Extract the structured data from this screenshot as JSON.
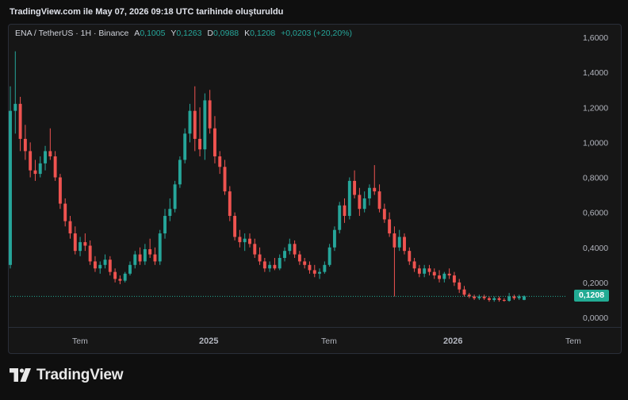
{
  "caption": "TradingView.com ile May 07, 2026 09:18 UTC tarihinde oluşturuldu",
  "legend": {
    "symbol": "ENA / TetherUS · 1H · Binance",
    "open_label": "A",
    "open": "0,1005",
    "high_label": "Y",
    "high": "0,1263",
    "low_label": "D",
    "low": "0,0988",
    "close_label": "K",
    "close": "0,1208",
    "change": "+0,0203 (+20,20%)"
  },
  "last_price": "0,1208",
  "brand": {
    "name": "TradingView",
    "logo_icon": "tradingview-logo-icon"
  },
  "colors": {
    "up": "#26a69a",
    "down": "#ef5350",
    "badge": "#22ab94",
    "background": "#161616"
  },
  "chart_data": {
    "type": "candlestick",
    "y_ticks": [
      "1,6000",
      "1,4000",
      "1,2000",
      "1,0000",
      "0,8000",
      "0,6000",
      "0,4000",
      "0,2000",
      "0,0000"
    ],
    "y_tick_values": [
      1.6,
      1.4,
      1.2,
      1.0,
      0.8,
      0.6,
      0.4,
      0.2,
      0.0
    ],
    "ylim": [
      -0.05,
      1.68
    ],
    "x_ticks": [
      "Tem",
      "2025",
      "Tem",
      "2026",
      "Tem"
    ],
    "last_price": 0.1208,
    "grid": false,
    "candles": [
      [
        0.3,
        1.32,
        0.28,
        1.18
      ],
      [
        1.18,
        1.52,
        1.05,
        1.22
      ],
      [
        1.22,
        1.26,
        0.95,
        1.02
      ],
      [
        1.02,
        1.1,
        0.9,
        0.95
      ],
      [
        0.95,
        1.0,
        0.8,
        0.84
      ],
      [
        0.84,
        0.9,
        0.78,
        0.82
      ],
      [
        0.82,
        0.92,
        0.8,
        0.88
      ],
      [
        0.88,
        0.98,
        0.84,
        0.95
      ],
      [
        0.95,
        1.08,
        0.9,
        0.92
      ],
      [
        0.92,
        0.95,
        0.78,
        0.8
      ],
      [
        0.8,
        0.82,
        0.62,
        0.65
      ],
      [
        0.65,
        0.68,
        0.52,
        0.55
      ],
      [
        0.55,
        0.58,
        0.45,
        0.48
      ],
      [
        0.48,
        0.52,
        0.36,
        0.38
      ],
      [
        0.38,
        0.46,
        0.35,
        0.43
      ],
      [
        0.43,
        0.48,
        0.38,
        0.41
      ],
      [
        0.41,
        0.44,
        0.3,
        0.32
      ],
      [
        0.32,
        0.35,
        0.26,
        0.28
      ],
      [
        0.28,
        0.32,
        0.25,
        0.3
      ],
      [
        0.3,
        0.36,
        0.28,
        0.33
      ],
      [
        0.33,
        0.35,
        0.24,
        0.26
      ],
      [
        0.26,
        0.28,
        0.2,
        0.22
      ],
      [
        0.22,
        0.24,
        0.19,
        0.21
      ],
      [
        0.21,
        0.26,
        0.2,
        0.25
      ],
      [
        0.25,
        0.32,
        0.24,
        0.3
      ],
      [
        0.3,
        0.38,
        0.28,
        0.36
      ],
      [
        0.36,
        0.4,
        0.3,
        0.32
      ],
      [
        0.32,
        0.42,
        0.3,
        0.39
      ],
      [
        0.39,
        0.45,
        0.34,
        0.36
      ],
      [
        0.36,
        0.4,
        0.3,
        0.32
      ],
      [
        0.32,
        0.5,
        0.3,
        0.48
      ],
      [
        0.48,
        0.62,
        0.45,
        0.58
      ],
      [
        0.58,
        0.68,
        0.55,
        0.62
      ],
      [
        0.62,
        0.78,
        0.6,
        0.76
      ],
      [
        0.76,
        0.92,
        0.74,
        0.9
      ],
      [
        0.9,
        1.08,
        0.88,
        1.05
      ],
      [
        1.05,
        1.22,
        1.0,
        1.18
      ],
      [
        1.18,
        1.32,
        0.95,
        1.02
      ],
      [
        1.02,
        1.2,
        0.92,
        0.96
      ],
      [
        0.96,
        1.28,
        0.9,
        1.24
      ],
      [
        1.24,
        1.3,
        1.05,
        1.08
      ],
      [
        1.08,
        1.15,
        0.88,
        0.92
      ],
      [
        0.92,
        0.95,
        0.82,
        0.86
      ],
      [
        0.86,
        0.9,
        0.7,
        0.72
      ],
      [
        0.72,
        0.75,
        0.55,
        0.58
      ],
      [
        0.58,
        0.6,
        0.44,
        0.46
      ],
      [
        0.46,
        0.5,
        0.4,
        0.43
      ],
      [
        0.43,
        0.48,
        0.38,
        0.45
      ],
      [
        0.45,
        0.48,
        0.4,
        0.42
      ],
      [
        0.42,
        0.45,
        0.34,
        0.36
      ],
      [
        0.36,
        0.4,
        0.3,
        0.32
      ],
      [
        0.32,
        0.34,
        0.26,
        0.28
      ],
      [
        0.28,
        0.32,
        0.26,
        0.3
      ],
      [
        0.3,
        0.34,
        0.27,
        0.28
      ],
      [
        0.28,
        0.36,
        0.27,
        0.34
      ],
      [
        0.34,
        0.4,
        0.32,
        0.38
      ],
      [
        0.38,
        0.45,
        0.36,
        0.42
      ],
      [
        0.42,
        0.44,
        0.34,
        0.36
      ],
      [
        0.36,
        0.38,
        0.3,
        0.32
      ],
      [
        0.32,
        0.34,
        0.28,
        0.3
      ],
      [
        0.3,
        0.32,
        0.25,
        0.27
      ],
      [
        0.27,
        0.3,
        0.23,
        0.25
      ],
      [
        0.25,
        0.28,
        0.22,
        0.26
      ],
      [
        0.26,
        0.32,
        0.25,
        0.3
      ],
      [
        0.3,
        0.42,
        0.29,
        0.4
      ],
      [
        0.4,
        0.52,
        0.38,
        0.5
      ],
      [
        0.5,
        0.66,
        0.48,
        0.64
      ],
      [
        0.64,
        0.68,
        0.54,
        0.58
      ],
      [
        0.58,
        0.8,
        0.56,
        0.78
      ],
      [
        0.78,
        0.84,
        0.68,
        0.7
      ],
      [
        0.7,
        0.74,
        0.58,
        0.62
      ],
      [
        0.62,
        0.72,
        0.6,
        0.68
      ],
      [
        0.68,
        0.76,
        0.64,
        0.74
      ],
      [
        0.74,
        0.87,
        0.7,
        0.72
      ],
      [
        0.72,
        0.76,
        0.6,
        0.62
      ],
      [
        0.62,
        0.65,
        0.54,
        0.56
      ],
      [
        0.56,
        0.6,
        0.46,
        0.48
      ],
      [
        0.48,
        0.52,
        0.12,
        0.4
      ],
      [
        0.4,
        0.5,
        0.38,
        0.46
      ],
      [
        0.46,
        0.48,
        0.36,
        0.38
      ],
      [
        0.38,
        0.4,
        0.3,
        0.32
      ],
      [
        0.32,
        0.34,
        0.26,
        0.28
      ],
      [
        0.28,
        0.3,
        0.23,
        0.25
      ],
      [
        0.25,
        0.3,
        0.23,
        0.28
      ],
      [
        0.28,
        0.3,
        0.24,
        0.26
      ],
      [
        0.26,
        0.28,
        0.22,
        0.24
      ],
      [
        0.24,
        0.27,
        0.2,
        0.22
      ],
      [
        0.22,
        0.26,
        0.2,
        0.25
      ],
      [
        0.25,
        0.28,
        0.22,
        0.24
      ],
      [
        0.24,
        0.26,
        0.18,
        0.2
      ],
      [
        0.2,
        0.22,
        0.14,
        0.16
      ],
      [
        0.16,
        0.18,
        0.12,
        0.13
      ],
      [
        0.13,
        0.14,
        0.11,
        0.12
      ],
      [
        0.12,
        0.13,
        0.1,
        0.11
      ],
      [
        0.11,
        0.13,
        0.1,
        0.12
      ],
      [
        0.12,
        0.13,
        0.1,
        0.11
      ],
      [
        0.11,
        0.12,
        0.09,
        0.1
      ],
      [
        0.1,
        0.12,
        0.09,
        0.11
      ],
      [
        0.11,
        0.12,
        0.09,
        0.1
      ],
      [
        0.1,
        0.11,
        0.09,
        0.095
      ],
      [
        0.095,
        0.14,
        0.09,
        0.12
      ],
      [
        0.12,
        0.13,
        0.1,
        0.11
      ],
      [
        0.11,
        0.13,
        0.1,
        0.12
      ],
      [
        0.1005,
        0.1263,
        0.0988,
        0.1208
      ]
    ]
  }
}
